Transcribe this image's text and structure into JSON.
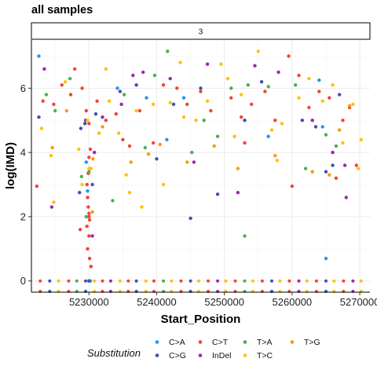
{
  "chart_data": {
    "type": "scatter",
    "title": "all samples",
    "facet_label": "3",
    "xlabel": "Start_Position",
    "ylabel": "log(IMD)",
    "xlim": [
      5221500,
      5271500
    ],
    "ylim": [
      -0.35,
      7.5
    ],
    "x_ticks": [
      5230000,
      5240000,
      5250000,
      5260000,
      5270000
    ],
    "x_tick_labels": [
      "5230000",
      "5240000",
      "5250000",
      "5260000",
      "5270000"
    ],
    "y_ticks": [
      0,
      2,
      4,
      6
    ],
    "y_tick_labels": [
      "0",
      "2",
      "4",
      "6"
    ],
    "grid": true,
    "legend": {
      "title": "Substitution",
      "placement": "bottom",
      "entries": [
        {
          "label": "C>A",
          "color": "#2196F3"
        },
        {
          "label": "C>G",
          "color": "#3F51B5"
        },
        {
          "label": "C>T",
          "color": "#F44336"
        },
        {
          "label": "InDel",
          "color": "#9C27B0"
        },
        {
          "label": "T>A",
          "color": "#4CAF50"
        },
        {
          "label": "T>C",
          "color": "#FFC107"
        },
        {
          "label": "T>G",
          "color": "#FF9800"
        }
      ]
    },
    "series": [
      {
        "name": "C>A",
        "color": "#2196F3",
        "points": [
          [
            5222600,
            7.0
          ],
          [
            5229600,
            3.7
          ],
          [
            5230200,
            0.0
          ],
          [
            5234200,
            6.0
          ],
          [
            5238500,
            5.7
          ],
          [
            5241500,
            4.4
          ],
          [
            5244000,
            5.7
          ],
          [
            5256500,
            4.5
          ],
          [
            5264000,
            6.25
          ],
          [
            5265000,
            0.7
          ],
          [
            5264500,
            4.8
          ],
          [
            5229800,
            2.8
          ]
        ]
      },
      {
        "name": "C>G",
        "color": "#3F51B5",
        "points": [
          [
            5222600,
            5.1
          ],
          [
            5228800,
            4.75
          ],
          [
            5229400,
            4.9
          ],
          [
            5228600,
            2.75
          ],
          [
            5230500,
            3.0
          ],
          [
            5231000,
            5.2
          ],
          [
            5234600,
            5.9
          ],
          [
            5237000,
            6.1
          ],
          [
            5240000,
            3.8
          ],
          [
            5242500,
            5.5
          ],
          [
            5245000,
            1.95
          ],
          [
            5246500,
            6.0
          ],
          [
            5249000,
            2.7
          ],
          [
            5253000,
            5.0
          ],
          [
            5255500,
            6.2
          ],
          [
            5261500,
            5.0
          ],
          [
            5263500,
            4.8
          ],
          [
            5265000,
            3.4
          ],
          [
            5266000,
            3.6
          ],
          [
            5267000,
            5.8
          ],
          [
            5230000,
            0.0
          ]
        ]
      },
      {
        "name": "C>T",
        "color": "#F44336",
        "points": [
          [
            5222300,
            2.95
          ],
          [
            5223200,
            5.6
          ],
          [
            5224800,
            5.5
          ],
          [
            5226000,
            6.1
          ],
          [
            5227300,
            5.8
          ],
          [
            5227900,
            6.6
          ],
          [
            5229000,
            6.0
          ],
          [
            5229600,
            5.3
          ],
          [
            5230000,
            4.9
          ],
          [
            5231200,
            5.6
          ],
          [
            5232500,
            5.0
          ],
          [
            5234000,
            5.2
          ],
          [
            5235000,
            4.4
          ],
          [
            5236000,
            4.2
          ],
          [
            5237500,
            5.3
          ],
          [
            5239500,
            4.3
          ],
          [
            5241000,
            6.1
          ],
          [
            5243000,
            6.0
          ],
          [
            5244500,
            5.5
          ],
          [
            5246500,
            5.9
          ],
          [
            5248000,
            5.3
          ],
          [
            5251000,
            5.7
          ],
          [
            5252500,
            5.1
          ],
          [
            5253000,
            4.3
          ],
          [
            5254000,
            5.5
          ],
          [
            5256000,
            5.9
          ],
          [
            5257500,
            5.0
          ],
          [
            5259500,
            7.0
          ],
          [
            5260000,
            2.95
          ],
          [
            5261000,
            6.4
          ],
          [
            5262500,
            5.4
          ],
          [
            5264000,
            5.9
          ],
          [
            5265500,
            5.7
          ],
          [
            5266500,
            3.2
          ],
          [
            5267500,
            5.0
          ],
          [
            5268500,
            5.4
          ],
          [
            5269500,
            3.6
          ],
          [
            5229700,
            3.0
          ],
          [
            5229800,
            2.6
          ],
          [
            5229900,
            2.3
          ],
          [
            5230000,
            2.1
          ],
          [
            5230100,
            1.9
          ],
          [
            5229700,
            1.7
          ],
          [
            5230000,
            1.4
          ],
          [
            5229800,
            1.0
          ],
          [
            5230100,
            0.7
          ],
          [
            5228700,
            1.6
          ],
          [
            5229900,
            3.35
          ],
          [
            5230000,
            3.85
          ],
          [
            5230200,
            4.1
          ],
          [
            5230300,
            0.45
          ],
          [
            5230000,
            2.0
          ]
        ]
      },
      {
        "name": "InDel",
        "color": "#9C27B0",
        "points": [
          [
            5223400,
            6.6
          ],
          [
            5224500,
            2.3
          ],
          [
            5229500,
            5.0
          ],
          [
            5230800,
            4.0
          ],
          [
            5232000,
            5.1
          ],
          [
            5234800,
            5.5
          ],
          [
            5236500,
            6.4
          ],
          [
            5238000,
            6.5
          ],
          [
            5242000,
            6.3
          ],
          [
            5245500,
            3.7
          ],
          [
            5247500,
            6.75
          ],
          [
            5252000,
            2.75
          ],
          [
            5254500,
            6.7
          ],
          [
            5258000,
            6.5
          ],
          [
            5263000,
            5.0
          ],
          [
            5266000,
            4.0
          ],
          [
            5267800,
            3.6
          ],
          [
            5268000,
            2.6
          ],
          [
            5230500,
            1.4
          ]
        ]
      },
      {
        "name": "T>A",
        "color": "#4CAF50",
        "points": [
          [
            5223700,
            5.8
          ],
          [
            5225000,
            5.3
          ],
          [
            5227200,
            6.3
          ],
          [
            5228900,
            3.25
          ],
          [
            5229600,
            2.0
          ],
          [
            5230000,
            3.4
          ],
          [
            5233500,
            2.5
          ],
          [
            5235200,
            5.8
          ],
          [
            5238300,
            4.15
          ],
          [
            5239700,
            6.4
          ],
          [
            5241600,
            7.15
          ],
          [
            5245200,
            4.0
          ],
          [
            5247000,
            5.0
          ],
          [
            5249000,
            4.5
          ],
          [
            5251000,
            6.0
          ],
          [
            5253000,
            1.4
          ],
          [
            5253500,
            6.1
          ],
          [
            5256500,
            6.05
          ],
          [
            5260500,
            6.1
          ],
          [
            5262000,
            3.5
          ],
          [
            5265000,
            4.55
          ],
          [
            5266500,
            4.2
          ]
        ]
      },
      {
        "name": "T>C",
        "color": "#FFC107",
        "points": [
          [
            5223000,
            4.75
          ],
          [
            5224400,
            3.9
          ],
          [
            5224800,
            2.45
          ],
          [
            5226500,
            6.2
          ],
          [
            5228500,
            4.1
          ],
          [
            5229000,
            3.0
          ],
          [
            5229800,
            5.0
          ],
          [
            5230300,
            3.5
          ],
          [
            5231500,
            4.6
          ],
          [
            5232500,
            6.6
          ],
          [
            5233000,
            5.6
          ],
          [
            5234400,
            4.6
          ],
          [
            5235500,
            3.3
          ],
          [
            5236000,
            2.75
          ],
          [
            5237000,
            5.3
          ],
          [
            5237800,
            2.3
          ],
          [
            5239500,
            5.5
          ],
          [
            5241000,
            3.0
          ],
          [
            5242000,
            5.55
          ],
          [
            5243500,
            6.8
          ],
          [
            5244000,
            5.1
          ],
          [
            5245800,
            5.0
          ],
          [
            5247500,
            5.6
          ],
          [
            5249500,
            6.75
          ],
          [
            5250500,
            6.3
          ],
          [
            5251500,
            4.5
          ],
          [
            5252500,
            5.8
          ],
          [
            5255000,
            7.15
          ],
          [
            5257000,
            4.7
          ],
          [
            5257800,
            3.75
          ],
          [
            5258500,
            4.9
          ],
          [
            5261000,
            5.7
          ],
          [
            5262500,
            6.3
          ],
          [
            5264500,
            5.6
          ],
          [
            5266000,
            6.1
          ],
          [
            5267500,
            4.3
          ],
          [
            5269000,
            5.5
          ],
          [
            5269800,
            3.5
          ],
          [
            5270200,
            4.4
          ],
          [
            5230000,
            3.5
          ]
        ]
      },
      {
        "name": "T>G",
        "color": "#FF9800",
        "points": [
          [
            5226700,
            5.3
          ],
          [
            5224600,
            4.15
          ],
          [
            5230600,
            3.8
          ],
          [
            5232000,
            4.8
          ],
          [
            5236200,
            3.7
          ],
          [
            5238800,
            3.95
          ],
          [
            5240500,
            4.25
          ],
          [
            5244500,
            3.7
          ],
          [
            5248500,
            4.2
          ],
          [
            5252000,
            3.5
          ],
          [
            5257500,
            3.9
          ],
          [
            5263000,
            3.4
          ],
          [
            5265500,
            3.3
          ],
          [
            5267000,
            4.7
          ],
          [
            5268500,
            5.45
          ],
          [
            5230500,
            2.15
          ]
        ]
      }
    ],
    "baseline_points": {
      "y": 0,
      "items": [
        {
          "x": 5222800,
          "color": "#F44336"
        },
        {
          "x": 5224200,
          "color": "#3F51B5"
        },
        {
          "x": 5225500,
          "color": "#FFC107"
        },
        {
          "x": 5227000,
          "color": "#F44336"
        },
        {
          "x": 5228200,
          "color": "#4CAF50"
        },
        {
          "x": 5229500,
          "color": "#3F51B5"
        },
        {
          "x": 5230800,
          "color": "#FFC107"
        },
        {
          "x": 5232000,
          "color": "#F44336"
        },
        {
          "x": 5233200,
          "color": "#9C27B0"
        },
        {
          "x": 5234600,
          "color": "#FFC107"
        },
        {
          "x": 5235800,
          "color": "#F44336"
        },
        {
          "x": 5237000,
          "color": "#3F51B5"
        },
        {
          "x": 5238400,
          "color": "#FFC107"
        },
        {
          "x": 5239600,
          "color": "#F44336"
        },
        {
          "x": 5241000,
          "color": "#4CAF50"
        },
        {
          "x": 5242200,
          "color": "#FFC107"
        },
        {
          "x": 5243600,
          "color": "#F44336"
        },
        {
          "x": 5245000,
          "color": "#3F51B5"
        },
        {
          "x": 5246200,
          "color": "#FFC107"
        },
        {
          "x": 5247600,
          "color": "#F44336"
        },
        {
          "x": 5249000,
          "color": "#9C27B0"
        },
        {
          "x": 5250200,
          "color": "#FFC107"
        },
        {
          "x": 5251600,
          "color": "#F44336"
        },
        {
          "x": 5253000,
          "color": "#4CAF50"
        },
        {
          "x": 5254200,
          "color": "#FFC107"
        },
        {
          "x": 5255600,
          "color": "#F44336"
        },
        {
          "x": 5257000,
          "color": "#3F51B5"
        },
        {
          "x": 5258200,
          "color": "#FFC107"
        },
        {
          "x": 5259600,
          "color": "#F44336"
        },
        {
          "x": 5261000,
          "color": "#9C27B0"
        },
        {
          "x": 5262200,
          "color": "#FFC107"
        },
        {
          "x": 5263600,
          "color": "#F44336"
        },
        {
          "x": 5265000,
          "color": "#3F51B5"
        },
        {
          "x": 5266200,
          "color": "#FFC107"
        },
        {
          "x": 5267600,
          "color": "#F44336"
        },
        {
          "x": 5269000,
          "color": "#9C27B0"
        },
        {
          "x": 5270200,
          "color": "#FFC107"
        }
      ]
    }
  }
}
